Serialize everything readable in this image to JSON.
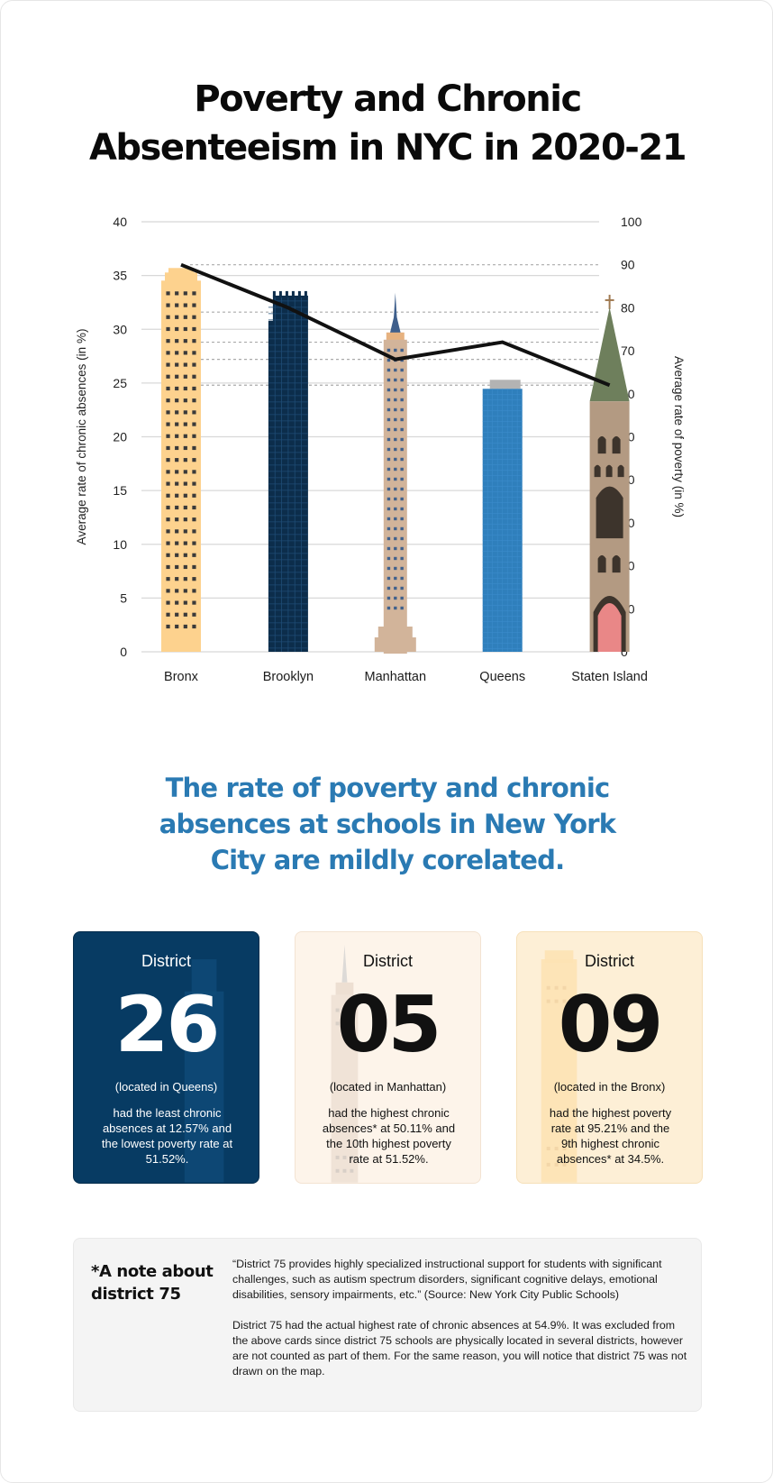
{
  "title_lines": [
    "Poverty and Chronic",
    "Absenteeism in NYC in 2020-21"
  ],
  "chart_data": {
    "type": "bar",
    "title": "Poverty and Chronic Absenteeism in NYC in 2020-21",
    "categories": [
      "Bronx",
      "Brooklyn",
      "Manhattan",
      "Queens",
      "Staten Island"
    ],
    "series": [
      {
        "name": "Average rate of chronic absences (in %)",
        "type": "bar",
        "axis": "left",
        "values": [
          35.7,
          33.3,
          29.2,
          25.3,
          31.2
        ]
      },
      {
        "name": "Average rate of poverty (in %)",
        "type": "line",
        "axis": "right",
        "values": [
          90,
          80,
          68,
          72,
          62
        ]
      }
    ],
    "ylabel_left": "Average rate of chronic absences (in %)",
    "ylabel_right": "Average rate of poverty (in %)",
    "ylim_left": [
      0,
      40
    ],
    "ylim_right": [
      0,
      100
    ],
    "yticks_left": [
      0,
      5,
      10,
      15,
      20,
      25,
      30,
      35,
      40
    ],
    "yticks_right": [
      0,
      10,
      20,
      30,
      40,
      50,
      60,
      70,
      80,
      90,
      100
    ],
    "grid": true,
    "reference_lines_right": [
      90,
      79,
      72,
      68,
      62
    ],
    "colors": {
      "bronx": "#fdd28e",
      "brooklyn": "#0c2d4b",
      "manhattan": "#d2b49a",
      "queens": "#2f7fbc",
      "staten_island": "#b39a82",
      "line": "#111111",
      "grid": "#d8d8d8",
      "ref_dash": "#aaaaaa"
    }
  },
  "subtitle": "The rate of poverty and chronic absences at schools in New York City are mildly corelated.",
  "cards": [
    {
      "label": "District",
      "number": "26",
      "located": "(located in Queens)",
      "desc": "had the least chronic absences at 12.57% and the lowest poverty rate at 51.52%."
    },
    {
      "label": "District",
      "number": "05",
      "located": "(located in Manhattan)",
      "desc": "had the highest chronic absences* at 50.11% and the 10th highest poverty rate at 51.52%."
    },
    {
      "label": "District",
      "number": "09",
      "located": "(located in the Bronx)",
      "desc": "had the highest poverty rate at 95.21% and the 9th highest chronic absences* at 34.5%."
    }
  ],
  "note": {
    "heading": "*A note about district 75",
    "paragraph1": "“District 75 provides highly specialized instructional support for students with significant challenges, such as autism spectrum disorders, significant cognitive delays, emotional disabilities, sensory impairments, etc.” (Source: New York City Public Schools)",
    "paragraph2": "District 75 had the actual highest rate of chronic absences at 54.9%. It was excluded from the above cards since district 75 schools are physically located in several districts, however are not counted as part of them. For the same reason, you will notice that district 75 was not drawn on the map."
  }
}
